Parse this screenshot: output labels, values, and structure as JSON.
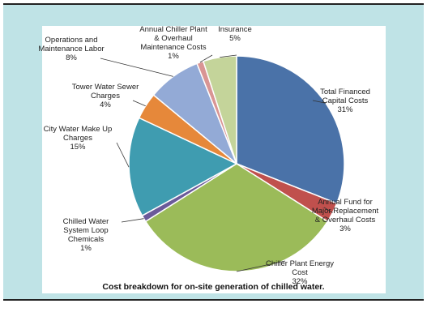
{
  "chart_data": {
    "type": "pie",
    "title": "",
    "slices": [
      {
        "label": [
          "Total Financed",
          "Capital Costs"
        ],
        "percent_text": "31%",
        "value": 31,
        "color": "#4a72a8"
      },
      {
        "label": [
          "Annual Fund for",
          "Major Replacement",
          "& Overhaul Costs"
        ],
        "percent_text": "3%",
        "value": 3,
        "color": "#c0504d"
      },
      {
        "label": [
          "Chiller Plant Energy",
          "Cost"
        ],
        "percent_text": "32%",
        "value": 32,
        "color": "#9bbb59"
      },
      {
        "label": [
          "Chilled Water",
          "System Loop",
          "Chemicals"
        ],
        "percent_text": "1%",
        "value": 1,
        "color": "#6b5a9a"
      },
      {
        "label": [
          "City Water Make Up",
          "Charges"
        ],
        "percent_text": "15%",
        "value": 15,
        "color": "#3f9cb0"
      },
      {
        "label": [
          "Tower Water Sewer",
          "Charges"
        ],
        "percent_text": "4%",
        "value": 4,
        "color": "#e6883a"
      },
      {
        "label": [
          "Operations and",
          "Maintenance Labor"
        ],
        "percent_text": "8%",
        "value": 8,
        "color": "#93aad6"
      },
      {
        "label": [
          "Annual Chiller Plant",
          "& Overhaul",
          "Maintenance Costs"
        ],
        "percent_text": "1%",
        "value": 1,
        "color": "#d99594"
      },
      {
        "label": [
          "Insurance"
        ],
        "percent_text": "5%",
        "value": 5,
        "color": "#c4d49a"
      }
    ]
  },
  "caption": "Cost breakdown for on-site generation of chilled water."
}
